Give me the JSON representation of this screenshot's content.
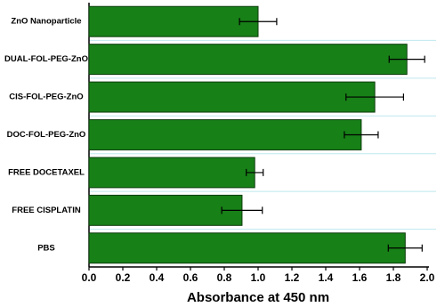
{
  "chart_data": {
    "type": "hbar",
    "x_label": "Absorbance at 450 nm",
    "categories": [
      "ZnO Nanoparticle",
      "DUAL-FOL-PEG-ZnO",
      "CIS-FOL-PEG-ZnO",
      "DOC-FOL-PEG-ZnO",
      "FREE DOCETAXEL",
      "FREE CISPLATIN",
      "PBS"
    ],
    "values": [
      1.0,
      1.88,
      1.69,
      1.61,
      0.98,
      0.905,
      1.87
    ],
    "errors": [
      0.11,
      0.105,
      0.17,
      0.1,
      0.05,
      0.12,
      0.1
    ],
    "color": "#178017",
    "xlim": [
      0,
      2.0
    ],
    "xticks": [
      {
        "value": 0,
        "label": "0.0"
      },
      {
        "value": 0.2,
        "label": "0.2"
      },
      {
        "value": 0.4,
        "label": "0.4"
      },
      {
        "value": 0.6,
        "label": "0.6"
      },
      {
        "value": 0.8,
        "label": "0.8"
      },
      {
        "value": 1.0,
        "label": "1.0"
      },
      {
        "value": 1.2,
        "label": "1.2"
      },
      {
        "value": 1.4,
        "label": "1.4"
      },
      {
        "value": 1.6,
        "label": "1.6"
      },
      {
        "value": 1.8,
        "label": "1.8"
      },
      {
        "value": 2.0,
        "label": "2.0"
      }
    ]
  }
}
